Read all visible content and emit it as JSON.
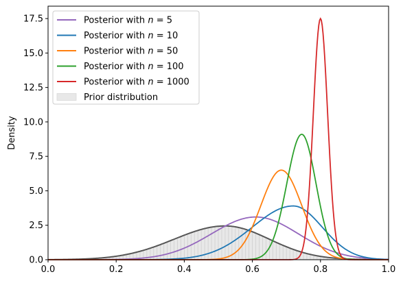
{
  "chart_data": {
    "type": "line",
    "title": "",
    "xlabel": "",
    "ylabel": "Density",
    "xlim": [
      0.0,
      1.0
    ],
    "ylim": [
      0.0,
      18.4
    ],
    "x_ticks": [
      "0.0",
      "0.2",
      "0.4",
      "0.6",
      "0.8",
      "1.0"
    ],
    "y_ticks": [
      "0.0",
      "2.5",
      "5.0",
      "7.5",
      "10.0",
      "12.5",
      "15.0",
      "17.5"
    ],
    "legend_position": "top-left",
    "series": [
      {
        "name": "Posterior with n = 5",
        "legend_prefix": "Posterior with ",
        "legend_var": "n",
        "legend_value": "= 5",
        "color": "#9467bd",
        "kind": "line",
        "peak_x": 0.61,
        "peak_y": 3.1,
        "left_sd": 0.13,
        "right_sd": 0.125
      },
      {
        "name": "Posterior with n = 10",
        "legend_prefix": "Posterior with ",
        "legend_var": "n",
        "legend_value": "= 10",
        "color": "#1f77b4",
        "kind": "line",
        "peak_x": 0.72,
        "peak_y": 3.9,
        "left_sd": 0.12,
        "right_sd": 0.085
      },
      {
        "name": "Posterior with n = 50",
        "legend_prefix": "Posterior with ",
        "legend_var": "n",
        "legend_value": "= 50",
        "color": "#ff7f0e",
        "kind": "line",
        "peak_x": 0.685,
        "peak_y": 6.5,
        "left_sd": 0.06,
        "right_sd": 0.06
      },
      {
        "name": "Posterior with n = 100",
        "legend_prefix": "Posterior with ",
        "legend_var": "n",
        "legend_value": "= 100",
        "color": "#2ca02c",
        "kind": "line",
        "peak_x": 0.745,
        "peak_y": 9.1,
        "left_sd": 0.044,
        "right_sd": 0.042
      },
      {
        "name": "Posterior with n = 1000",
        "legend_prefix": "Posterior with ",
        "legend_var": "n",
        "legend_value": "= 1000",
        "color": "#d62728",
        "kind": "line",
        "peak_x": 0.8,
        "peak_y": 17.5,
        "left_sd": 0.021,
        "right_sd": 0.021
      },
      {
        "name": "Prior distribution",
        "legend_prefix": "Prior distribution",
        "legend_var": "",
        "legend_value": "",
        "color": "#555555",
        "fill": "#e8e8e8",
        "kind": "area",
        "peak_x": 0.52,
        "peak_y": 2.45,
        "left_sd": 0.15,
        "right_sd": 0.13
      }
    ]
  }
}
